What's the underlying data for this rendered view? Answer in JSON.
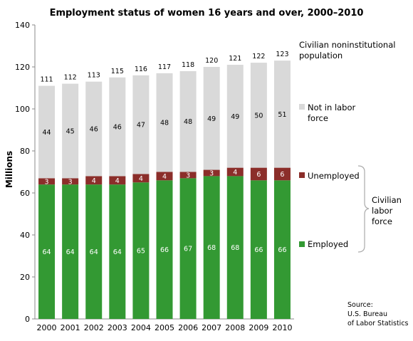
{
  "chart_data": {
    "type": "bar",
    "stacked": true,
    "title": "Employment status of women 16 years and over, 2000–2010",
    "ylabel": "Millions",
    "ylim": [
      0,
      140
    ],
    "yticks": [
      0,
      20,
      40,
      60,
      80,
      100,
      120,
      140
    ],
    "grid": false,
    "categories": [
      "2000",
      "2001",
      "2002",
      "2003",
      "2004",
      "2005",
      "2006",
      "2007",
      "2008",
      "2009",
      "2010"
    ],
    "series": [
      {
        "name": "Employed",
        "color": "#339933",
        "values": [
          64,
          64,
          64,
          64,
          65,
          66,
          67,
          68,
          68,
          66,
          66
        ]
      },
      {
        "name": "Unemployed",
        "color": "#8b2e2a",
        "values": [
          3,
          3,
          4,
          4,
          4,
          4,
          3,
          3,
          4,
          6,
          6
        ]
      },
      {
        "name": "Not in labor force",
        "color": "#d9d9d9",
        "values": [
          44,
          45,
          46,
          46,
          47,
          48,
          48,
          49,
          49,
          50,
          51
        ]
      }
    ],
    "totals": {
      "name": "Civilian noninstitutional population",
      "values": [
        111,
        112,
        113,
        115,
        116,
        117,
        118,
        120,
        121,
        122,
        123
      ]
    },
    "legend": {
      "population": "Civilian noninstitutional population",
      "not_in_labor_force": "Not in labor force",
      "unemployed": "Unemployed",
      "employed": "Employed",
      "civilian_labor_force": "Civilian labor force"
    },
    "source": [
      "Source:",
      "U.S. Bureau",
      "of Labor Statistics"
    ]
  }
}
